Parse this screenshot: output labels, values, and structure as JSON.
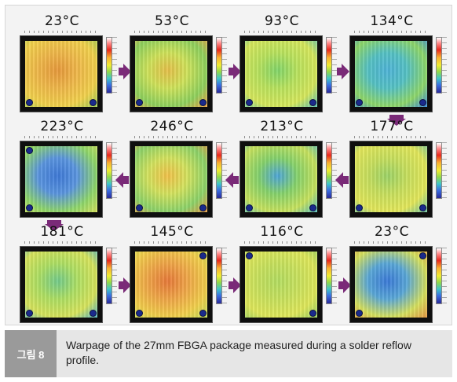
{
  "figure": {
    "panels": [
      {
        "temp": "23°C",
        "colors": [
          "#f0b84a",
          "#e89a3c",
          "#f2d24c",
          "#9fd05a"
        ]
      },
      {
        "temp": "53°C",
        "colors": [
          "#cfe35a",
          "#e6c04a",
          "#8fd25e",
          "#f0a448"
        ]
      },
      {
        "temp": "93°C",
        "colors": [
          "#b9e35e",
          "#82d66a",
          "#d7e85c",
          "#5ec6b8"
        ]
      },
      {
        "temp": "134°C",
        "colors": [
          "#56c2c4",
          "#4fb4d8",
          "#8fd86a",
          "#3f8ee0"
        ]
      },
      {
        "temp": "223°C",
        "colors": [
          "#5b96e0",
          "#3f7ad8",
          "#90d86a",
          "#d7e25e"
        ]
      },
      {
        "temp": "246°C",
        "colors": [
          "#d4e35e",
          "#f2c24a",
          "#8dd46a",
          "#e89a46"
        ]
      },
      {
        "temp": "213°C",
        "colors": [
          "#86d36c",
          "#4ea6d8",
          "#c8e35e",
          "#58c0c4"
        ]
      },
      {
        "temp": "177°C",
        "colors": [
          "#c8e05e",
          "#9dd468",
          "#e4e85a",
          "#6fc6a8"
        ]
      },
      {
        "temp": "181°C",
        "colors": [
          "#aee064",
          "#74cc8c",
          "#d8e45c",
          "#56b8cc"
        ]
      },
      {
        "temp": "145°C",
        "colors": [
          "#f0a648",
          "#e87a3a",
          "#f2d04c",
          "#c4e25e"
        ]
      },
      {
        "temp": "116°C",
        "colors": [
          "#c8e25e",
          "#b4de62",
          "#e0e85a",
          "#9ad468"
        ]
      },
      {
        "temp": "23°C",
        "colors": [
          "#5aa8d8",
          "#3b7ad8",
          "#d7e25e",
          "#e89a46"
        ]
      }
    ],
    "arrow_color": "#7a2a78"
  },
  "caption": {
    "label": "그림 8",
    "text": "Warpage of the 27mm FBGA package measured during a solder reflow profile."
  }
}
